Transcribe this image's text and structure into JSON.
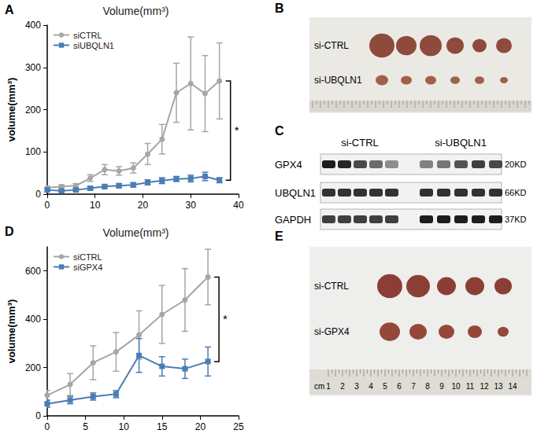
{
  "chart_data": [
    {
      "panel": "A",
      "type": "line",
      "title": "Volume(mm³)",
      "y_label": "volume(mm³)",
      "x": [
        0,
        3,
        6,
        9,
        12,
        15,
        18,
        21,
        24,
        27,
        30,
        33,
        36
      ],
      "series": [
        {
          "name": "siCTRL",
          "color": "#a6a6a6",
          "marker": "circle",
          "values": [
            15,
            18,
            20,
            38,
            58,
            55,
            62,
            95,
            130,
            240,
            262,
            238,
            268
          ],
          "errors": [
            4,
            4,
            5,
            8,
            12,
            10,
            12,
            25,
            35,
            70,
            110,
            90,
            90
          ]
        },
        {
          "name": "siUBQLN1",
          "color": "#4a7db5",
          "marker": "square",
          "values": [
            10,
            8,
            10,
            14,
            18,
            20,
            22,
            28,
            32,
            36,
            37,
            42,
            33
          ],
          "errors": [
            3,
            2,
            3,
            4,
            5,
            5,
            5,
            6,
            7,
            6,
            8,
            10,
            6
          ]
        }
      ],
      "xlim": [
        0,
        40
      ],
      "xticks": [
        0,
        10,
        20,
        30,
        40
      ],
      "ylim": [
        0,
        400
      ],
      "yticks": [
        0,
        100,
        200,
        300,
        400
      ],
      "grid": false,
      "legend": "top-left",
      "annotation": "*"
    },
    {
      "panel": "D",
      "type": "line",
      "title": "Volume(mm³)",
      "y_label": "volume(mm³)",
      "x": [
        0,
        3,
        6,
        9,
        12,
        15,
        18,
        21
      ],
      "series": [
        {
          "name": "siCTRL",
          "color": "#a6a6a6",
          "marker": "circle",
          "values": [
            85,
            130,
            220,
            265,
            335,
            420,
            480,
            575
          ],
          "errors": [
            20,
            45,
            70,
            80,
            100,
            120,
            130,
            115
          ]
        },
        {
          "name": "siGPX4",
          "color": "#4a7db5",
          "marker": "square",
          "values": [
            50,
            65,
            80,
            90,
            250,
            205,
            195,
            225
          ],
          "errors": [
            15,
            15,
            15,
            15,
            70,
            40,
            40,
            60
          ]
        }
      ],
      "xlim": [
        0,
        25
      ],
      "xticks": [
        0,
        5,
        10,
        15,
        20,
        25
      ],
      "ylim": [
        0,
        700
      ],
      "yticks": [
        0,
        200,
        400,
        600
      ],
      "grid": false,
      "legend": "top-left",
      "annotation": "*"
    }
  ],
  "photos": [
    {
      "panel": "B",
      "rows": [
        "si-CTRL",
        "si-UBQLN1"
      ]
    },
    {
      "panel": "E",
      "rows": [
        "si-CTRL",
        "si-GPX4"
      ],
      "ruler": [
        "cm",
        "1",
        "2",
        "3",
        "4",
        "5",
        "6",
        "7",
        "8",
        "9",
        "10",
        "11",
        "12",
        "13",
        "14"
      ]
    }
  ],
  "blot": {
    "panel": "C",
    "groups": [
      "si-CTRL",
      "si-UBQLN1"
    ],
    "rows": [
      {
        "label": "GPX4",
        "size": "20KD"
      },
      {
        "label": "UBQLN1",
        "size": "66KD"
      },
      {
        "label": "GAPDH",
        "size": "37KD"
      }
    ]
  }
}
